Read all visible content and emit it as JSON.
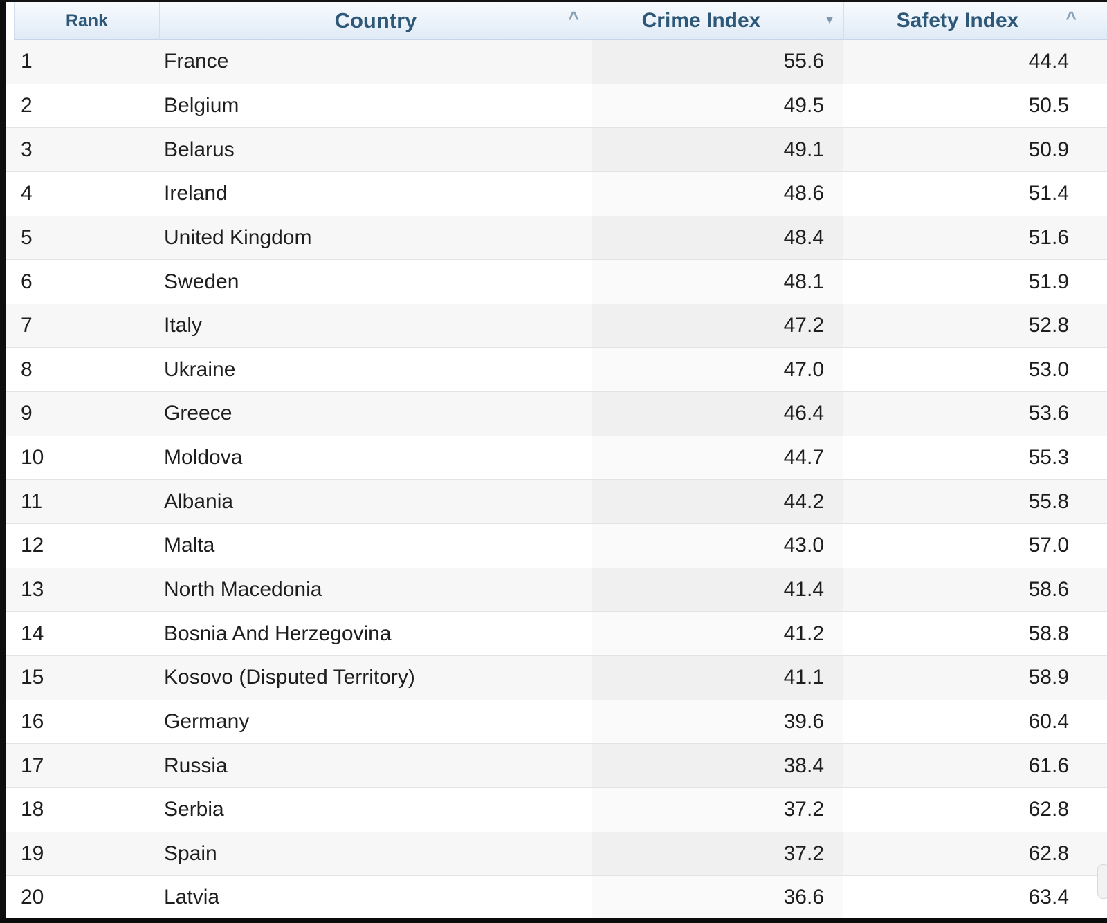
{
  "table": {
    "columns": [
      {
        "label": "Rank",
        "sort_icon": ""
      },
      {
        "label": "Country",
        "sort_icon": "^"
      },
      {
        "label": "Crime Index",
        "sort_icon": "▼"
      },
      {
        "label": "Safety Index",
        "sort_icon": "^"
      }
    ],
    "sorted_by": "Crime Index",
    "sort_direction": "descending",
    "rows": [
      {
        "rank": "1",
        "country": "France",
        "crime_index": "55.6",
        "safety_index": "44.4"
      },
      {
        "rank": "2",
        "country": "Belgium",
        "crime_index": "49.5",
        "safety_index": "50.5"
      },
      {
        "rank": "3",
        "country": "Belarus",
        "crime_index": "49.1",
        "safety_index": "50.9"
      },
      {
        "rank": "4",
        "country": "Ireland",
        "crime_index": "48.6",
        "safety_index": "51.4"
      },
      {
        "rank": "5",
        "country": "United Kingdom",
        "crime_index": "48.4",
        "safety_index": "51.6"
      },
      {
        "rank": "6",
        "country": "Sweden",
        "crime_index": "48.1",
        "safety_index": "51.9"
      },
      {
        "rank": "7",
        "country": "Italy",
        "crime_index": "47.2",
        "safety_index": "52.8"
      },
      {
        "rank": "8",
        "country": "Ukraine",
        "crime_index": "47.0",
        "safety_index": "53.0"
      },
      {
        "rank": "9",
        "country": "Greece",
        "crime_index": "46.4",
        "safety_index": "53.6"
      },
      {
        "rank": "10",
        "country": "Moldova",
        "crime_index": "44.7",
        "safety_index": "55.3"
      },
      {
        "rank": "11",
        "country": "Albania",
        "crime_index": "44.2",
        "safety_index": "55.8"
      },
      {
        "rank": "12",
        "country": "Malta",
        "crime_index": "43.0",
        "safety_index": "57.0"
      },
      {
        "rank": "13",
        "country": "North Macedonia",
        "crime_index": "41.4",
        "safety_index": "58.6"
      },
      {
        "rank": "14",
        "country": "Bosnia And Herzegovina",
        "crime_index": "41.2",
        "safety_index": "58.8"
      },
      {
        "rank": "15",
        "country": "Kosovo (Disputed Territory)",
        "crime_index": "41.1",
        "safety_index": "58.9"
      },
      {
        "rank": "16",
        "country": "Germany",
        "crime_index": "39.6",
        "safety_index": "60.4"
      },
      {
        "rank": "17",
        "country": "Russia",
        "crime_index": "38.4",
        "safety_index": "61.6"
      },
      {
        "rank": "18",
        "country": "Serbia",
        "crime_index": "37.2",
        "safety_index": "62.8"
      },
      {
        "rank": "19",
        "country": "Spain",
        "crime_index": "37.2",
        "safety_index": "62.8"
      },
      {
        "rank": "20",
        "country": "Latvia",
        "crime_index": "36.6",
        "safety_index": "63.4"
      }
    ]
  },
  "colors": {
    "header_text": "#2d5878",
    "header_bg_top": "#f8fbfe",
    "header_bg_bottom": "#dfeaf5",
    "row_stripe": "#f7f7f7",
    "sorted_column_stripe": "#f0f0f0",
    "sorted_column_plain": "#fafafa",
    "row_border": "#e3e3e3",
    "body_text": "#1e1e1e",
    "frame": "#0e0e0e"
  }
}
